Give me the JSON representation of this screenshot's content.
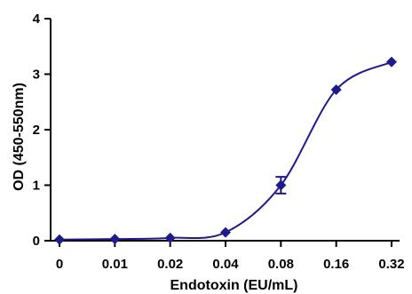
{
  "chart_data": {
    "type": "scatter",
    "title": "",
    "xlabel": "Endotoxin (EU/mL)",
    "ylabel": "OD (450-550nm)",
    "x_ticks": [
      "0",
      "0.01",
      "0.02",
      "0.04",
      "0.08",
      "0.16",
      "0.32"
    ],
    "y_ticks": [
      "0",
      "1",
      "2",
      "3",
      "4"
    ],
    "ylim": [
      0,
      4
    ],
    "grid": false,
    "legend": "none",
    "series": [
      {
        "points": [
          {
            "x": "0",
            "y": 0.02
          },
          {
            "x": "0.01",
            "y": 0.03
          },
          {
            "x": "0.02",
            "y": 0.05
          },
          {
            "x": "0.04",
            "y": 0.15
          },
          {
            "x": "0.08",
            "y": 1.0,
            "error": 0.15
          },
          {
            "x": "0.16",
            "y": 2.72
          },
          {
            "x": "0.32",
            "y": 3.22
          }
        ],
        "fit": "sigmoidal curve",
        "color": "#1f1a8c",
        "marker": "diamond"
      }
    ]
  }
}
